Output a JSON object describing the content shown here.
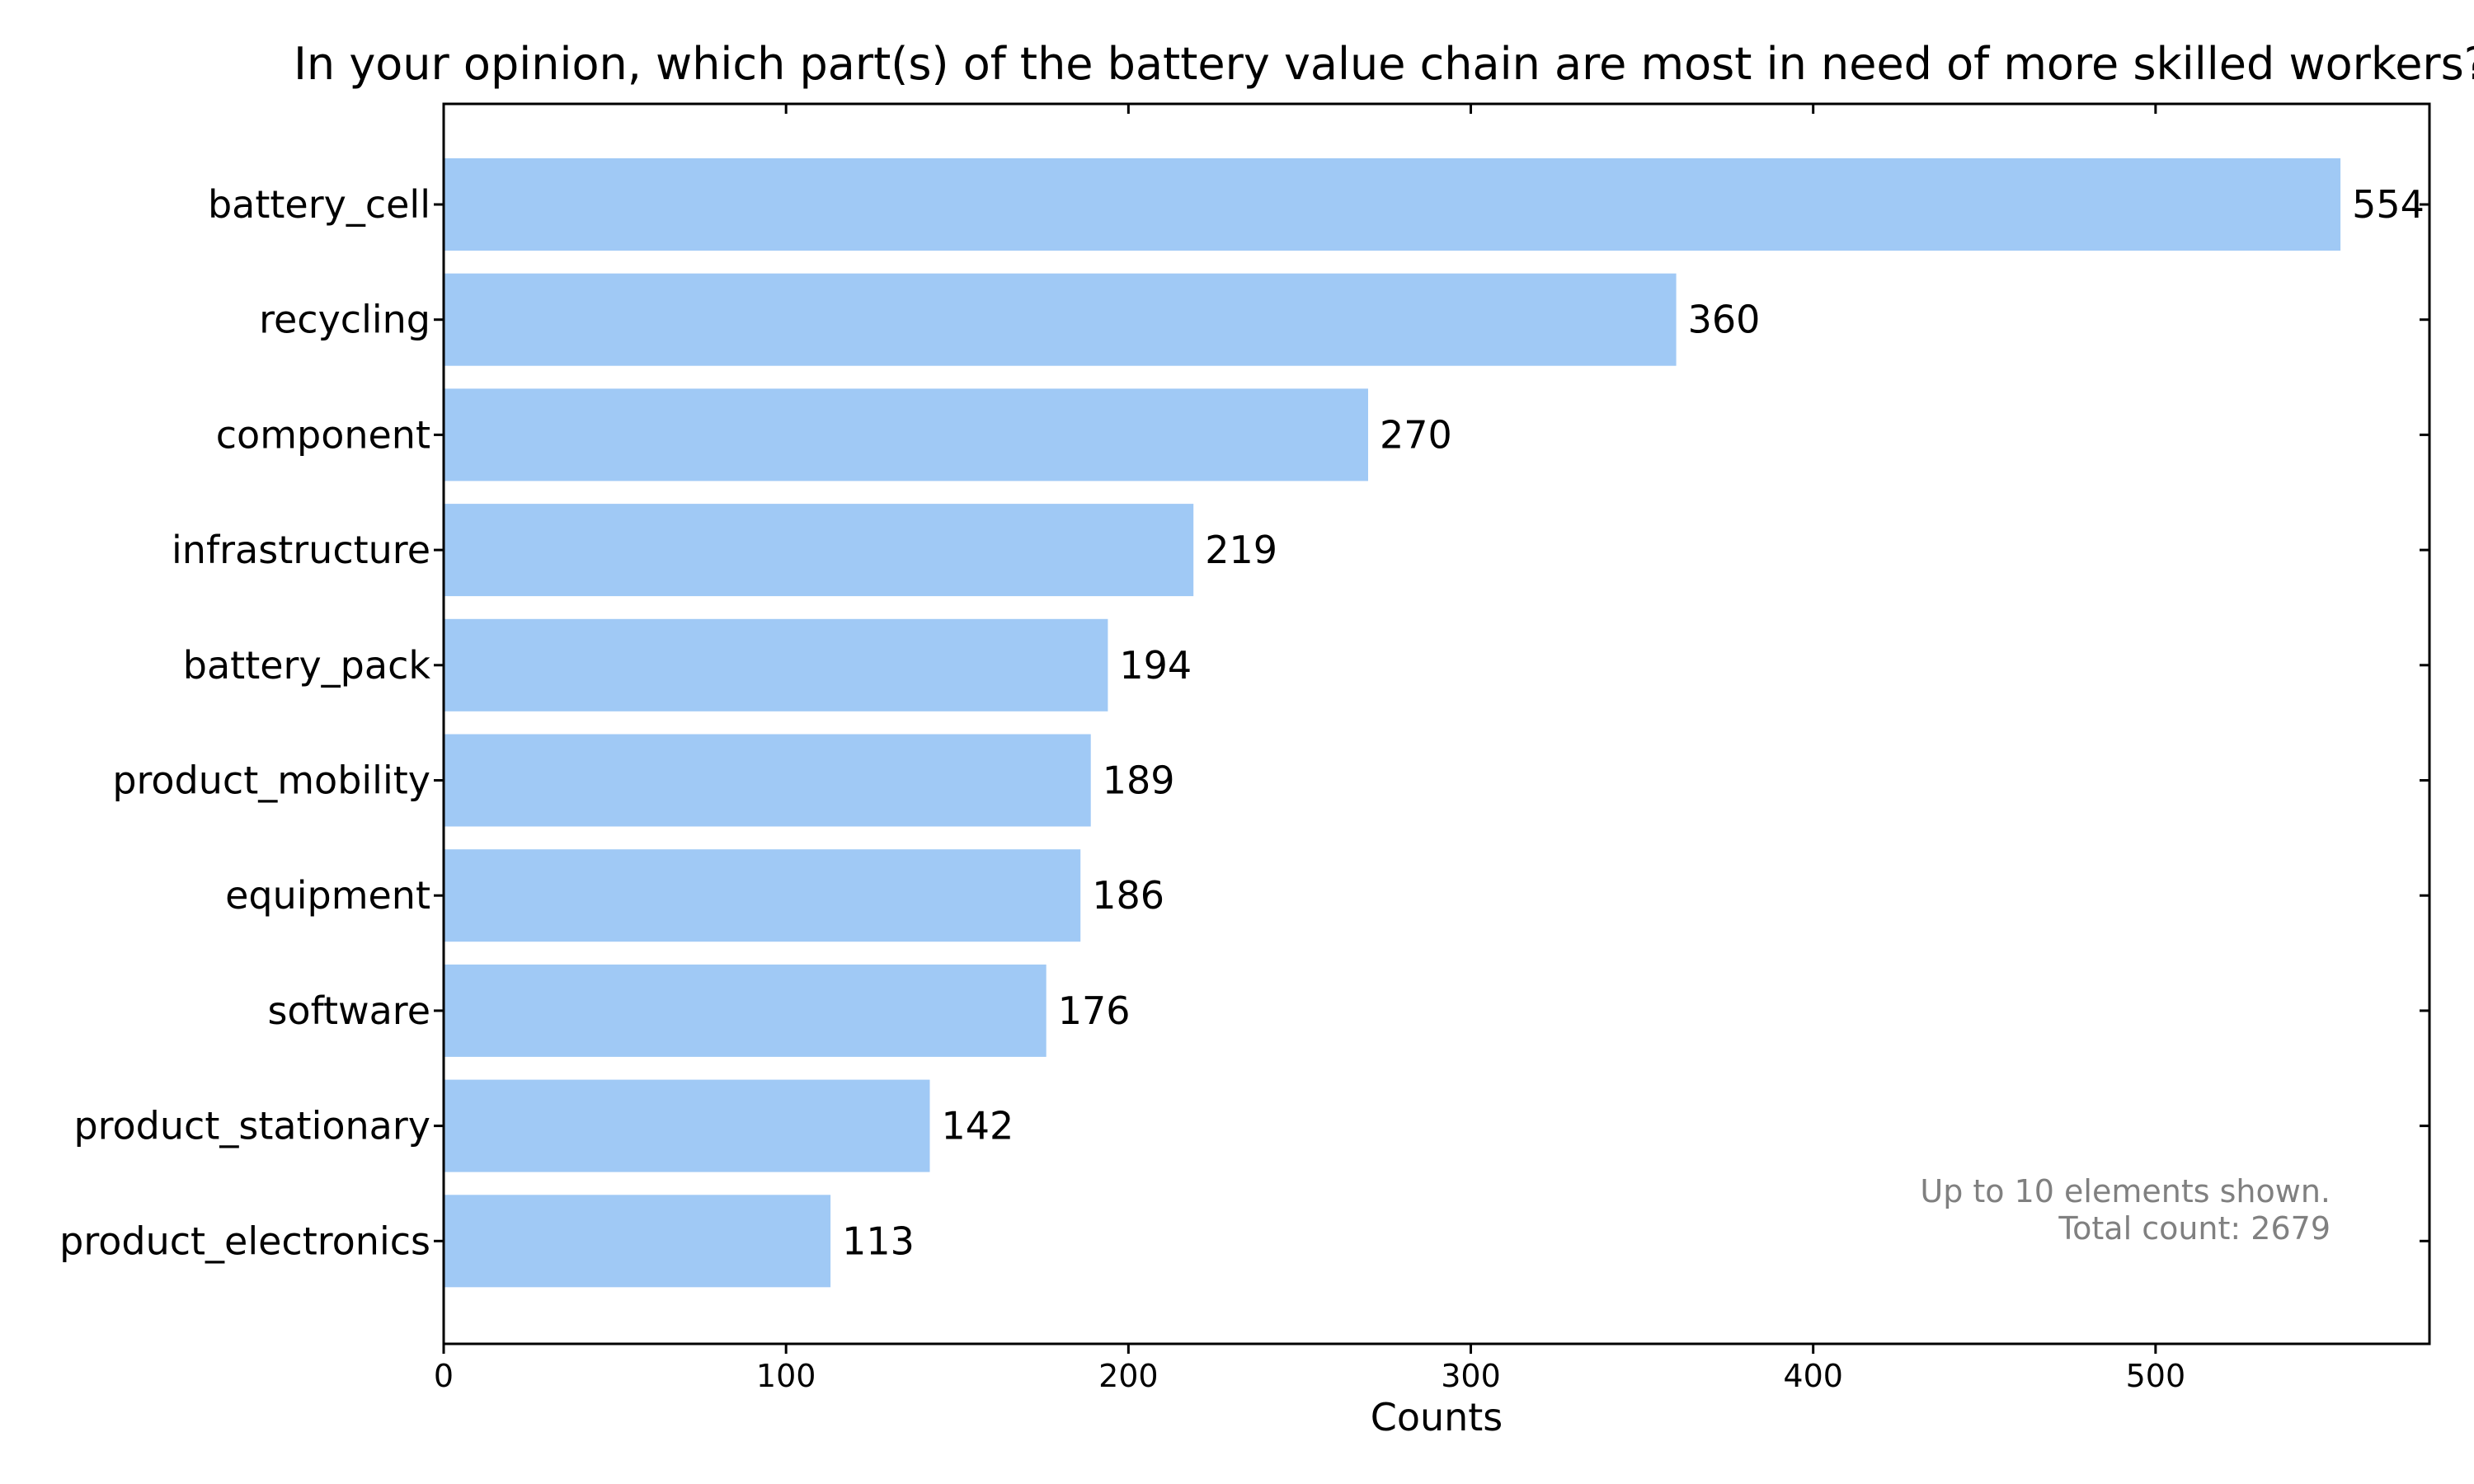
{
  "colors": {
    "bar": "#a0c9f5",
    "frame": "#000000",
    "note": "#808080"
  },
  "chart_data": {
    "type": "bar",
    "orientation": "horizontal",
    "title": "In your opinion, which part(s) of the battery value chain are most in need of more skilled workers?",
    "xlabel": "Counts",
    "ylabel": "",
    "xlim": [
      0,
      580
    ],
    "xticks": [
      0,
      100,
      200,
      300,
      400,
      500
    ],
    "grid": false,
    "categories": [
      "battery_cell",
      "recycling",
      "component",
      "infrastructure",
      "battery_pack",
      "product_mobility",
      "equipment",
      "software",
      "product_stationary",
      "product_electronics"
    ],
    "values": [
      554,
      360,
      270,
      219,
      194,
      189,
      186,
      176,
      142,
      113
    ],
    "annotation": {
      "lines": [
        "Up to 10 elements shown.",
        "Total count: 2679"
      ],
      "placement": "bottom-right"
    }
  }
}
